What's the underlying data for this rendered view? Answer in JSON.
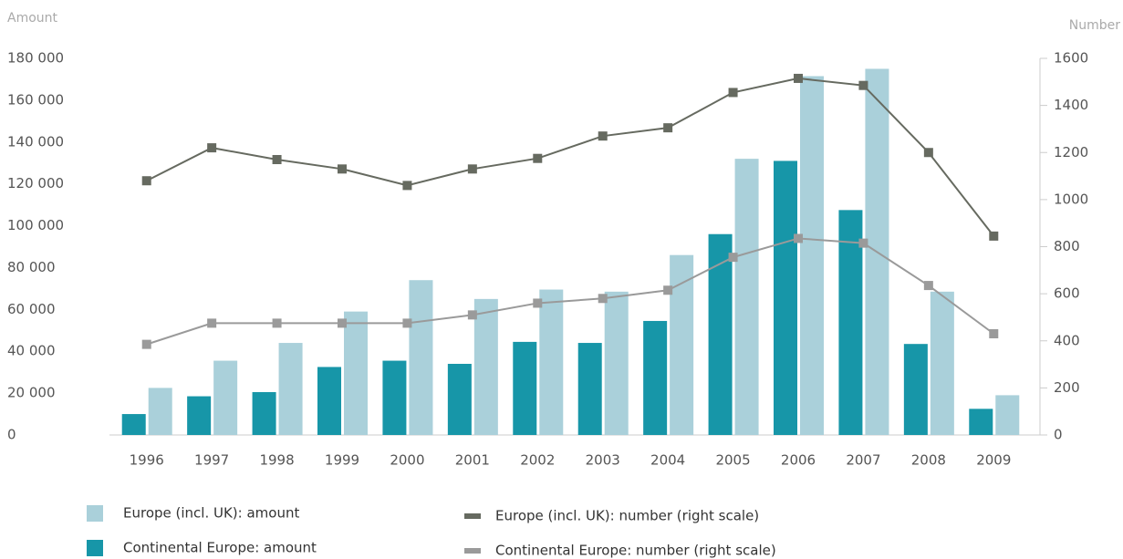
{
  "chart_data": {
    "type": "bar",
    "y_label": "Amount",
    "y2_label": "Number",
    "categories": [
      "1996",
      "1997",
      "1998",
      "1999",
      "2000",
      "2001",
      "2002",
      "2003",
      "2004",
      "2005",
      "2006",
      "2007",
      "2008",
      "2009"
    ],
    "series": [
      {
        "name": "Europe (incl. UK): amount",
        "type": "bar",
        "color": "#aad0da",
        "values": [
          22500,
          35500,
          44000,
          59000,
          74000,
          65000,
          69500,
          68500,
          86000,
          132000,
          171500,
          175000,
          68500,
          19000
        ]
      },
      {
        "name": "Continental Europe: amount",
        "type": "bar",
        "color": "#1796a8",
        "values": [
          10000,
          18500,
          20500,
          32500,
          35500,
          34000,
          44500,
          44000,
          54500,
          96000,
          131000,
          107500,
          43500,
          12500
        ]
      },
      {
        "name": "Europe (incl. UK): number (right scale)",
        "type": "line",
        "axis": "y2",
        "color": "#666a60",
        "values": [
          1080,
          1220,
          1170,
          1130,
          1060,
          1130,
          1175,
          1270,
          1305,
          1455,
          1515,
          1485,
          1200,
          845
        ]
      },
      {
        "name": "Continental Europe: number (right scale)",
        "type": "line",
        "axis": "y2",
        "color": "#9a9a9a",
        "values": [
          385,
          475,
          475,
          475,
          475,
          510,
          560,
          580,
          615,
          755,
          835,
          815,
          635,
          430
        ]
      }
    ],
    "ylim": [
      0,
      180000
    ],
    "yticks": [
      0,
      {
        "value": 20000,
        "label": "20 000"
      },
      {
        "value": 40000,
        "label": "40 000"
      },
      {
        "value": 60000,
        "label": "60 000"
      },
      {
        "value": 80000,
        "label": "80 000"
      },
      {
        "value": 100000,
        "label": "100 000"
      },
      {
        "value": 120000,
        "label": "120 000"
      },
      {
        "value": 140000,
        "label": "140 000"
      },
      {
        "value": 160000,
        "label": "160 000"
      },
      {
        "value": 180000,
        "label": "180 000"
      }
    ],
    "y2lim": [
      0,
      1600
    ],
    "y2ticks": [
      0,
      200,
      400,
      600,
      800,
      1000,
      1200,
      1400,
      1600
    ]
  }
}
